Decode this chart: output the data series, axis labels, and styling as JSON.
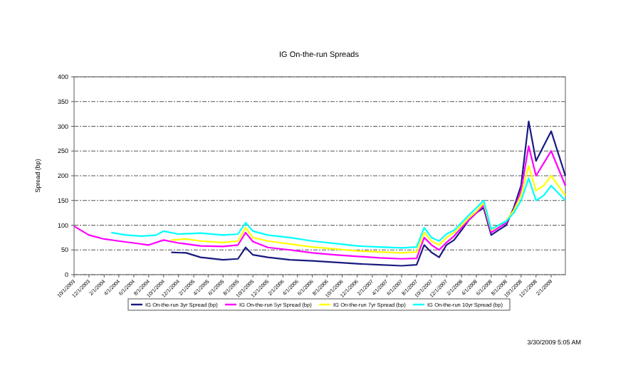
{
  "chart_data": {
    "type": "line",
    "title": "IG On-the-run Spreads",
    "ylabel": "Spread (bp)",
    "xlim": [
      "2003-10-01",
      "2009-03-31"
    ],
    "xticks": [
      {
        "value": "2003-10-01",
        "label": "10/1/2003"
      },
      {
        "value": "2003-12-01",
        "label": "12/1/2003"
      },
      {
        "value": "2004-02-01",
        "label": "2/1/2004"
      },
      {
        "value": "2004-04-01",
        "label": "4/1/2004"
      },
      {
        "value": "2004-06-01",
        "label": "6/1/2004"
      },
      {
        "value": "2004-08-01",
        "label": "8/1/2004"
      },
      {
        "value": "2004-10-01",
        "label": "10/1/2004"
      },
      {
        "value": "2004-12-01",
        "label": "12/1/2004"
      },
      {
        "value": "2005-02-01",
        "label": "2/1/2005"
      },
      {
        "value": "2005-04-01",
        "label": "4/1/2005"
      },
      {
        "value": "2005-06-01",
        "label": "6/1/2005"
      },
      {
        "value": "2005-08-01",
        "label": "8/1/2005"
      },
      {
        "value": "2005-10-01",
        "label": "10/1/2005"
      },
      {
        "value": "2005-12-01",
        "label": "12/1/2005"
      },
      {
        "value": "2006-02-01",
        "label": "2/1/2006"
      },
      {
        "value": "2006-04-01",
        "label": "4/1/2006"
      },
      {
        "value": "2006-06-01",
        "label": "6/1/2006"
      },
      {
        "value": "2006-08-01",
        "label": "8/1/2006"
      },
      {
        "value": "2006-10-01",
        "label": "10/1/2006"
      },
      {
        "value": "2006-12-01",
        "label": "12/1/2006"
      },
      {
        "value": "2007-02-01",
        "label": "2/1/2007"
      },
      {
        "value": "2007-04-01",
        "label": "4/1/2007"
      },
      {
        "value": "2007-06-01",
        "label": "6/1/2007"
      },
      {
        "value": "2007-08-01",
        "label": "8/1/2007"
      },
      {
        "value": "2007-10-01",
        "label": "10/1/2007"
      },
      {
        "value": "2007-12-01",
        "label": "12/1/2007"
      },
      {
        "value": "2008-02-01",
        "label": "2/1/2008"
      },
      {
        "value": "2008-04-01",
        "label": "4/1/2008"
      },
      {
        "value": "2008-06-01",
        "label": "6/1/2008"
      },
      {
        "value": "2008-08-01",
        "label": "8/1/2008"
      },
      {
        "value": "2008-10-01",
        "label": "10/1/2008"
      },
      {
        "value": "2008-12-01",
        "label": "12/1/2008"
      },
      {
        "value": "2009-02-01",
        "label": "2/1/2009"
      }
    ],
    "ylim": [
      0,
      400
    ],
    "yticks": [
      0,
      50,
      100,
      150,
      200,
      250,
      300,
      350,
      400
    ],
    "grid": "y",
    "legend": "bottom",
    "line_style": "solid",
    "marker": "none",
    "annotations": [
      "3/30/2009  5:05 AM"
    ],
    "series": [
      {
        "name": "IG On-the-run 3yr Spread (bp)",
        "color": "#1a1a80",
        "x": [
          "2004-11-01",
          "2005-01-01",
          "2005-03-01",
          "2005-06-01",
          "2005-08-01",
          "2005-09-01",
          "2005-10-01",
          "2005-12-01",
          "2006-03-01",
          "2006-06-01",
          "2006-09-01",
          "2006-12-01",
          "2007-03-01",
          "2007-06-01",
          "2007-08-01",
          "2007-09-01",
          "2007-10-01",
          "2007-11-01",
          "2007-12-01",
          "2008-01-01",
          "2008-02-01",
          "2008-03-01",
          "2008-04-01",
          "2008-05-01",
          "2008-06-01",
          "2008-07-01",
          "2008-08-01",
          "2008-09-01",
          "2008-10-01",
          "2008-11-01",
          "2008-12-01",
          "2009-01-01",
          "2009-02-01",
          "2009-03-31"
        ],
        "values": [
          45,
          44,
          35,
          30,
          32,
          55,
          40,
          35,
          30,
          28,
          25,
          22,
          20,
          18,
          20,
          60,
          45,
          35,
          60,
          70,
          90,
          110,
          125,
          135,
          80,
          90,
          100,
          135,
          180,
          310,
          230,
          260,
          290,
          200
        ]
      },
      {
        "name": "IG On-the-run 5yr Spread (bp)",
        "color": "#ff00ff",
        "x": [
          "2003-10-01",
          "2003-12-01",
          "2004-02-01",
          "2004-04-01",
          "2004-06-01",
          "2004-08-01",
          "2004-10-01",
          "2004-12-01",
          "2005-03-01",
          "2005-06-01",
          "2005-08-01",
          "2005-09-01",
          "2005-10-01",
          "2005-12-01",
          "2006-03-01",
          "2006-06-01",
          "2006-09-01",
          "2006-12-01",
          "2007-03-01",
          "2007-06-01",
          "2007-08-01",
          "2007-09-01",
          "2007-10-01",
          "2007-11-01",
          "2007-12-01",
          "2008-01-01",
          "2008-02-01",
          "2008-03-01",
          "2008-04-01",
          "2008-05-01",
          "2008-06-01",
          "2008-07-01",
          "2008-08-01",
          "2008-09-01",
          "2008-10-01",
          "2008-11-01",
          "2008-12-01",
          "2009-01-01",
          "2009-02-01",
          "2009-03-31"
        ],
        "values": [
          98,
          80,
          72,
          68,
          64,
          60,
          70,
          64,
          58,
          57,
          60,
          85,
          67,
          55,
          50,
          44,
          40,
          37,
          34,
          32,
          33,
          75,
          60,
          50,
          65,
          78,
          95,
          110,
          125,
          140,
          85,
          95,
          105,
          130,
          170,
          260,
          200,
          225,
          250,
          180
        ]
      },
      {
        "name": "IG On-the-run 7yr Spread (bp)",
        "color": "#ffff00",
        "x": [
          "2004-11-01",
          "2005-01-01",
          "2005-03-01",
          "2005-06-01",
          "2005-08-01",
          "2005-09-01",
          "2005-10-01",
          "2005-12-01",
          "2006-03-01",
          "2006-06-01",
          "2006-09-01",
          "2006-12-01",
          "2007-03-01",
          "2007-06-01",
          "2007-08-01",
          "2007-09-01",
          "2007-10-01",
          "2007-11-01",
          "2007-12-01",
          "2008-01-01",
          "2008-02-01",
          "2008-03-01",
          "2008-04-01",
          "2008-05-01",
          "2008-06-01",
          "2008-07-01",
          "2008-08-01",
          "2008-09-01",
          "2008-10-01",
          "2008-11-01",
          "2008-12-01",
          "2009-01-01",
          "2009-02-01",
          "2009-03-31"
        ],
        "values": [
          70,
          72,
          68,
          65,
          68,
          95,
          75,
          68,
          62,
          56,
          52,
          48,
          46,
          44,
          46,
          85,
          68,
          60,
          75,
          85,
          100,
          115,
          128,
          145,
          90,
          100,
          108,
          130,
          160,
          220,
          170,
          180,
          200,
          160
        ]
      },
      {
        "name": "IG On-the-run 10yr Spread (bp)",
        "color": "#00ffff",
        "x": [
          "2004-03-01",
          "2004-05-01",
          "2004-07-01",
          "2004-09-01",
          "2004-10-01",
          "2004-12-01",
          "2005-03-01",
          "2005-06-01",
          "2005-08-01",
          "2005-09-01",
          "2005-10-01",
          "2005-12-01",
          "2006-03-01",
          "2006-06-01",
          "2006-09-01",
          "2006-12-01",
          "2007-03-01",
          "2007-06-01",
          "2007-08-01",
          "2007-09-01",
          "2007-10-01",
          "2007-11-01",
          "2007-12-01",
          "2008-01-01",
          "2008-02-01",
          "2008-03-01",
          "2008-04-01",
          "2008-05-01",
          "2008-06-01",
          "2008-07-01",
          "2008-08-01",
          "2008-09-01",
          "2008-10-01",
          "2008-11-01",
          "2008-12-01",
          "2009-01-01",
          "2009-02-01",
          "2009-03-31"
        ],
        "values": [
          85,
          80,
          78,
          80,
          88,
          82,
          84,
          80,
          82,
          105,
          88,
          80,
          75,
          68,
          63,
          58,
          56,
          54,
          56,
          95,
          75,
          68,
          82,
          90,
          105,
          120,
          135,
          150,
          92,
          100,
          108,
          125,
          150,
          195,
          150,
          160,
          180,
          150
        ]
      }
    ]
  }
}
